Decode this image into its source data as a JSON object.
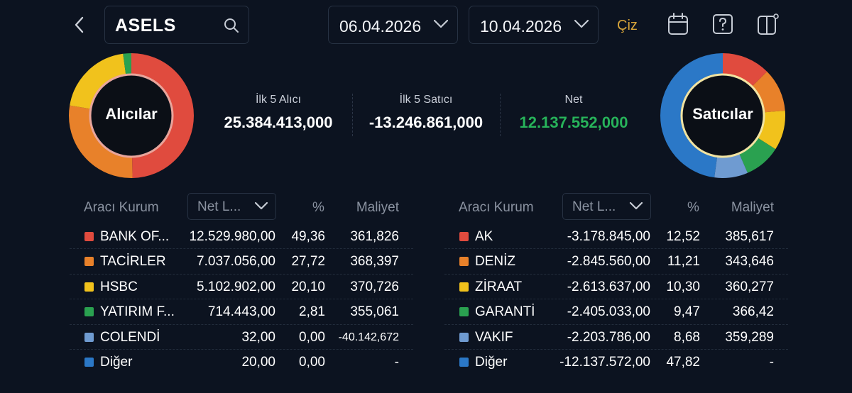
{
  "header": {
    "symbol": "ASELS",
    "start_date": "06.04.2026",
    "end_date": "10.04.2026",
    "draw_label": "Çiz"
  },
  "buyers": {
    "label": "Alıcılar",
    "stats_label": "İlk 5 Alıcı",
    "stats_value": "25.384.413,000"
  },
  "sellers": {
    "label": "Satıcılar",
    "stats_label": "İlk 5 Satıcı",
    "stats_value": "-13.246.861,000"
  },
  "net": {
    "label": "Net",
    "value": "12.137.552,000"
  },
  "colors": {
    "red": "#e04b3e",
    "orange": "#e8812a",
    "yellow": "#f1c21c",
    "green": "#2aa150",
    "lightblue": "#6f9bd1",
    "blue": "#2b78c7"
  },
  "table_headers": {
    "kurum": "Aracı Kurum",
    "sort": "Net L...",
    "pct": "%",
    "maliyet": "Maliyet"
  },
  "buyers_table": [
    {
      "name": "BANK OF...",
      "lot": "12.529.980,00",
      "pct": "49,36",
      "maliyet": "361,826",
      "color": "#e04b3e"
    },
    {
      "name": "TACİRLER",
      "lot": "7.037.056,00",
      "pct": "27,72",
      "maliyet": "368,397",
      "color": "#e8812a"
    },
    {
      "name": "HSBC",
      "lot": "5.102.902,00",
      "pct": "20,10",
      "maliyet": "370,726",
      "color": "#f1c21c"
    },
    {
      "name": "YATIRIM F...",
      "lot": "714.443,00",
      "pct": "2,81",
      "maliyet": "355,061",
      "color": "#2aa150"
    },
    {
      "name": "COLENDİ",
      "lot": "32,00",
      "pct": "0,00",
      "maliyet": "-40.142,672",
      "color": "#6f9bd1"
    },
    {
      "name": "Diğer",
      "lot": "20,00",
      "pct": "0,00",
      "maliyet": "-",
      "color": "#2b78c7"
    }
  ],
  "sellers_table": [
    {
      "name": "AK",
      "lot": "-3.178.845,00",
      "pct": "12,52",
      "maliyet": "385,617",
      "color": "#e04b3e"
    },
    {
      "name": "DENİZ",
      "lot": "-2.845.560,00",
      "pct": "11,21",
      "maliyet": "343,646",
      "color": "#e8812a"
    },
    {
      "name": "ZİRAAT",
      "lot": "-2.613.637,00",
      "pct": "10,30",
      "maliyet": "360,277",
      "color": "#f1c21c"
    },
    {
      "name": "GARANTİ",
      "lot": "-2.405.033,00",
      "pct": "9,47",
      "maliyet": "366,42",
      "color": "#2aa150"
    },
    {
      "name": "VAKIF",
      "lot": "-2.203.786,00",
      "pct": "8,68",
      "maliyet": "359,289",
      "color": "#6f9bd1"
    },
    {
      "name": "Diğer",
      "lot": "-12.137.572,00",
      "pct": "47,82",
      "maliyet": "-",
      "color": "#2b78c7"
    }
  ]
}
